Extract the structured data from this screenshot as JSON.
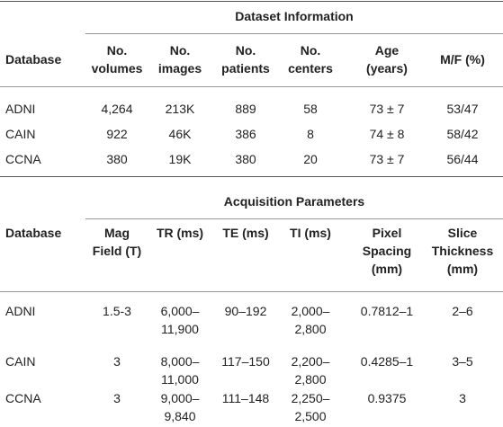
{
  "sections": [
    {
      "title": "Dataset Information",
      "columns": [
        "Database",
        "No. volumes",
        "No. images",
        "No. patients",
        "No. centers",
        "Age (years)",
        "M/F (%)"
      ],
      "rows": [
        [
          "ADNI",
          "4,264",
          "213K",
          "889",
          "58",
          "73 ± 7",
          "53/47"
        ],
        [
          "CAIN",
          "922",
          "46K",
          "386",
          "8",
          "74 ± 8",
          "58/42"
        ],
        [
          "CCNA",
          "380",
          "19K",
          "380",
          "20",
          "73 ± 7",
          "56/44"
        ]
      ]
    },
    {
      "title": "Acquisition Parameters",
      "columns": [
        "Database",
        "Mag Field (T)",
        "TR (ms)",
        "TE (ms)",
        "TI (ms)",
        "Pixel Spacing (mm)",
        "Slice Thickness (mm)"
      ],
      "rows": [
        [
          "ADNI",
          "1.5-3",
          "6,000–11,900",
          "90–192",
          "2,000–2,800",
          "0.7812–1",
          "2–6"
        ],
        [
          "CAIN",
          "3",
          "8,000–11,000",
          "117–150",
          "2,200–2,800",
          "0.4285–1",
          "3–5"
        ],
        [
          "CCNA",
          "3",
          "9,000–9,840",
          "111–148",
          "2,250–2,500",
          "0.9375",
          "3"
        ]
      ]
    }
  ]
}
